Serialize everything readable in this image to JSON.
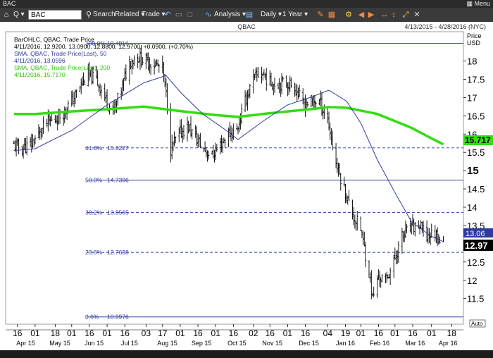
{
  "window": {
    "title": "BAC",
    "menu": "Menu"
  },
  "toolbar": {
    "symbol": "BAC",
    "search": "Search",
    "related": "Related",
    "trade": "Trade",
    "analysis": "Analysis",
    "interval": "Daily",
    "range": "1 Year",
    "icons": [
      "home-icon",
      "search-icon",
      "undo-icon",
      "folder-icon",
      "analysis-icon",
      "chart-type-icon",
      "bars-icon",
      "draw-icon",
      "settings-icon",
      "play-icon",
      "fullscreen-icon",
      "close-icon"
    ]
  },
  "chart": {
    "symbol": "QBAC",
    "date_range": "4/13/2015 - 4/28/2016 (NYC)",
    "price_label": "Price",
    "currency": "USD",
    "auto_label": "Auto",
    "legend": {
      "ohlc_title": "BarOHLC, QBAC, Trade Price",
      "ohlc_values": "4/11/2016, 12.9200, 13.0900, 12.8800, 12.9700, +0.0900, (+0.70%)",
      "sma50_title": "SMA, QBAC, Trade Price(Last), 50",
      "sma50_value": "4/11/2016, 13.0596",
      "sma200_title": "SMA, QBAC, Trade Price(Last), 200",
      "sma200_value": "4/11/2016, 15.7170"
    },
    "fib": [
      {
        "pct": "100.0%",
        "price": "18.4816"
      },
      {
        "pct": "61.8%",
        "price": "15.6227"
      },
      {
        "pct": "50.0%",
        "price": "14.7396"
      },
      {
        "pct": "38.2%",
        "price": "13.8565"
      },
      {
        "pct": "23.6%",
        "price": "12.7638"
      },
      {
        "pct": "0.0%",
        "price": "10.9976"
      }
    ],
    "price_tags": {
      "sma200": "15.717",
      "sma50": "13.06",
      "last": "12.97"
    },
    "colors": {
      "ohlc": "#000000",
      "sma50": "#2e3a9e",
      "sma200": "#33dd11",
      "fib": "#2e3a9e",
      "last_tag": "#000000"
    }
  },
  "chart_data": {
    "type": "line",
    "title": "QBAC",
    "ylabel": "Price USD",
    "ylim": [
      10.8,
      18.8
    ],
    "y_ticks": [
      11.5,
      12,
      12.5,
      13,
      13.5,
      14,
      14.5,
      15,
      15.5,
      16,
      16.5,
      17,
      17.5,
      18
    ],
    "x_day_ticks": [
      {
        "label": "16",
        "date": "2015-04-16"
      },
      {
        "label": "01",
        "date": "2015-05-01"
      },
      {
        "label": "18",
        "date": "2015-05-18"
      },
      {
        "label": "01",
        "date": "2015-06-01"
      },
      {
        "label": "16",
        "date": "2015-06-16"
      },
      {
        "label": "01",
        "date": "2015-07-01"
      },
      {
        "label": "16",
        "date": "2015-07-16"
      },
      {
        "label": "03",
        "date": "2015-08-03"
      },
      {
        "label": "17",
        "date": "2015-08-17"
      },
      {
        "label": "01",
        "date": "2015-09-01"
      },
      {
        "label": "16",
        "date": "2015-09-16"
      },
      {
        "label": "01",
        "date": "2015-10-01"
      },
      {
        "label": "16",
        "date": "2015-10-16"
      },
      {
        "label": "02",
        "date": "2015-11-02"
      },
      {
        "label": "16",
        "date": "2015-11-16"
      },
      {
        "label": "01",
        "date": "2015-12-01"
      },
      {
        "label": "16",
        "date": "2015-12-16"
      },
      {
        "label": "04",
        "date": "2016-01-04"
      },
      {
        "label": "19",
        "date": "2016-01-19"
      },
      {
        "label": "01",
        "date": "2016-02-01"
      },
      {
        "label": "16",
        "date": "2016-02-16"
      },
      {
        "label": "01",
        "date": "2016-03-01"
      },
      {
        "label": "16",
        "date": "2016-03-16"
      },
      {
        "label": "01",
        "date": "2016-04-01"
      },
      {
        "label": "18",
        "date": "2016-04-18"
      }
    ],
    "x_month_labels": [
      {
        "label": "Apr 15",
        "date": "2015-04-23"
      },
      {
        "label": "May 15",
        "date": "2015-05-22"
      },
      {
        "label": "Jun 15",
        "date": "2015-06-20"
      },
      {
        "label": "Jul 15",
        "date": "2015-07-20"
      },
      {
        "label": "Aug 15",
        "date": "2015-08-21"
      },
      {
        "label": "Sep 15",
        "date": "2015-09-19"
      },
      {
        "label": "Oct 15",
        "date": "2015-10-19"
      },
      {
        "label": "Nov 15",
        "date": "2015-11-18"
      },
      {
        "label": "Dec 15",
        "date": "2015-12-19"
      },
      {
        "label": "Jan 16",
        "date": "2016-01-19"
      },
      {
        "label": "Feb 16",
        "date": "2016-02-17"
      },
      {
        "label": "Mar 16",
        "date": "2016-03-18"
      },
      {
        "label": "Apr 16",
        "date": "2016-04-15"
      }
    ],
    "close_anchors": [
      [
        "2015-04-13",
        15.7
      ],
      [
        "2015-04-20",
        15.6
      ],
      [
        "2015-04-27",
        15.7
      ],
      [
        "2015-05-04",
        16.0
      ],
      [
        "2015-05-11",
        16.3
      ],
      [
        "2015-05-18",
        16.4
      ],
      [
        "2015-05-25",
        16.6
      ],
      [
        "2015-06-01",
        16.9
      ],
      [
        "2015-06-08",
        17.3
      ],
      [
        "2015-06-15",
        17.6
      ],
      [
        "2015-06-22",
        17.5
      ],
      [
        "2015-06-29",
        17.0
      ],
      [
        "2015-07-06",
        16.6
      ],
      [
        "2015-07-13",
        17.2
      ],
      [
        "2015-07-20",
        18.0
      ],
      [
        "2015-07-27",
        18.1
      ],
      [
        "2015-08-03",
        18.0
      ],
      [
        "2015-08-10",
        17.9
      ],
      [
        "2015-08-17",
        17.8
      ],
      [
        "2015-08-21",
        16.8
      ],
      [
        "2015-08-24",
        15.6
      ],
      [
        "2015-08-31",
        16.0
      ],
      [
        "2015-09-08",
        16.2
      ],
      [
        "2015-09-14",
        15.9
      ],
      [
        "2015-09-21",
        15.6
      ],
      [
        "2015-09-28",
        15.4
      ],
      [
        "2015-10-05",
        15.7
      ],
      [
        "2015-10-12",
        16.0
      ],
      [
        "2015-10-19",
        16.1
      ],
      [
        "2015-10-26",
        16.9
      ],
      [
        "2015-11-02",
        17.5
      ],
      [
        "2015-11-09",
        17.7
      ],
      [
        "2015-11-16",
        17.4
      ],
      [
        "2015-11-23",
        17.4
      ],
      [
        "2015-11-30",
        17.4
      ],
      [
        "2015-12-07",
        17.3
      ],
      [
        "2015-12-14",
        16.8
      ],
      [
        "2015-12-21",
        16.9
      ],
      [
        "2015-12-28",
        16.9
      ],
      [
        "2016-01-04",
        16.4
      ],
      [
        "2016-01-11",
        15.2
      ],
      [
        "2016-01-19",
        14.4
      ],
      [
        "2016-01-25",
        13.8
      ],
      [
        "2016-02-01",
        13.4
      ],
      [
        "2016-02-08",
        12.2
      ],
      [
        "2016-02-11",
        11.5
      ],
      [
        "2016-02-16",
        12.1
      ],
      [
        "2016-02-22",
        12.0
      ],
      [
        "2016-02-29",
        12.5
      ],
      [
        "2016-03-07",
        13.2
      ],
      [
        "2016-03-14",
        13.4
      ],
      [
        "2016-03-21",
        13.5
      ],
      [
        "2016-03-28",
        13.2
      ],
      [
        "2016-04-04",
        13.3
      ],
      [
        "2016-04-11",
        12.97
      ]
    ],
    "sma50": [
      [
        "2015-04-13",
        15.55
      ],
      [
        "2015-05-01",
        15.6
      ],
      [
        "2015-06-01",
        16.1
      ],
      [
        "2015-07-01",
        16.8
      ],
      [
        "2015-08-01",
        17.4
      ],
      [
        "2015-08-20",
        17.6
      ],
      [
        "2015-09-01",
        17.15
      ],
      [
        "2015-09-20",
        16.55
      ],
      [
        "2015-10-10",
        16.1
      ],
      [
        "2015-10-20",
        15.85
      ],
      [
        "2015-11-10",
        16.35
      ],
      [
        "2015-12-01",
        16.8
      ],
      [
        "2015-12-20",
        17.0
      ],
      [
        "2016-01-05",
        17.2
      ],
      [
        "2016-01-20",
        16.9
      ],
      [
        "2016-02-01",
        16.3
      ],
      [
        "2016-02-15",
        15.3
      ],
      [
        "2016-03-01",
        14.4
      ],
      [
        "2016-03-15",
        13.6
      ],
      [
        "2016-04-01",
        13.2
      ],
      [
        "2016-04-11",
        13.06
      ]
    ],
    "sma200": [
      [
        "2015-04-13",
        16.55
      ],
      [
        "2015-05-01",
        16.55
      ],
      [
        "2015-06-01",
        16.62
      ],
      [
        "2015-07-01",
        16.68
      ],
      [
        "2015-08-01",
        16.75
      ],
      [
        "2015-09-01",
        16.63
      ],
      [
        "2015-10-01",
        16.52
      ],
      [
        "2015-10-20",
        16.47
      ],
      [
        "2015-11-10",
        16.55
      ],
      [
        "2015-12-01",
        16.62
      ],
      [
        "2015-12-20",
        16.68
      ],
      [
        "2016-01-05",
        16.74
      ],
      [
        "2016-01-20",
        16.72
      ],
      [
        "2016-02-15",
        16.55
      ],
      [
        "2016-03-15",
        16.17
      ],
      [
        "2016-04-01",
        15.88
      ],
      [
        "2016-04-11",
        15.72
      ]
    ],
    "fib_levels": [
      18.4816,
      15.6227,
      14.7396,
      13.8565,
      12.7638,
      10.9976
    ]
  }
}
